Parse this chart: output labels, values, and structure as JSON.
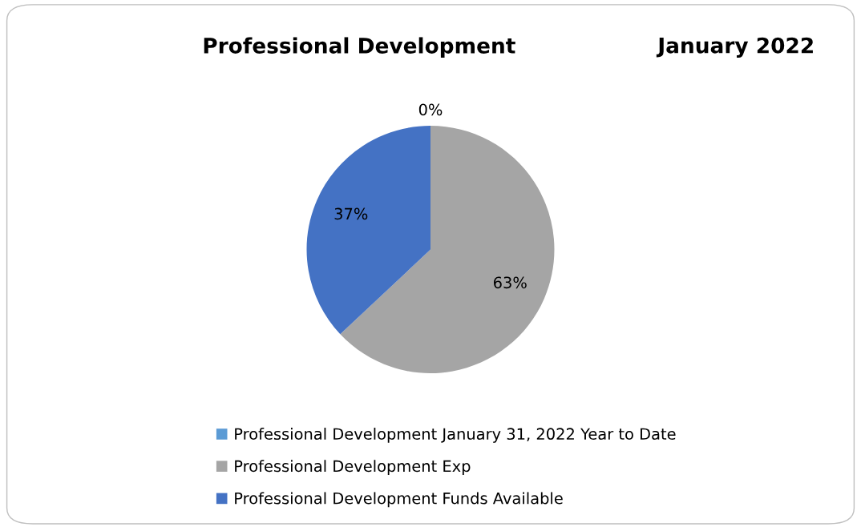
{
  "chart_data": {
    "type": "pie",
    "title": "Professional Development",
    "subtitle": "January 2022",
    "categories": [
      "Professional Development January 31, 2022 Year to Date",
      "Professional Development Exp",
      "Professional Development Funds Available"
    ],
    "values": [
      0,
      63,
      37
    ],
    "colors": [
      "#5b9bd5",
      "#a5a5a5",
      "#4472c4"
    ],
    "value_labels": [
      "0%",
      "63%",
      "37%"
    ],
    "legend": "bottom"
  }
}
